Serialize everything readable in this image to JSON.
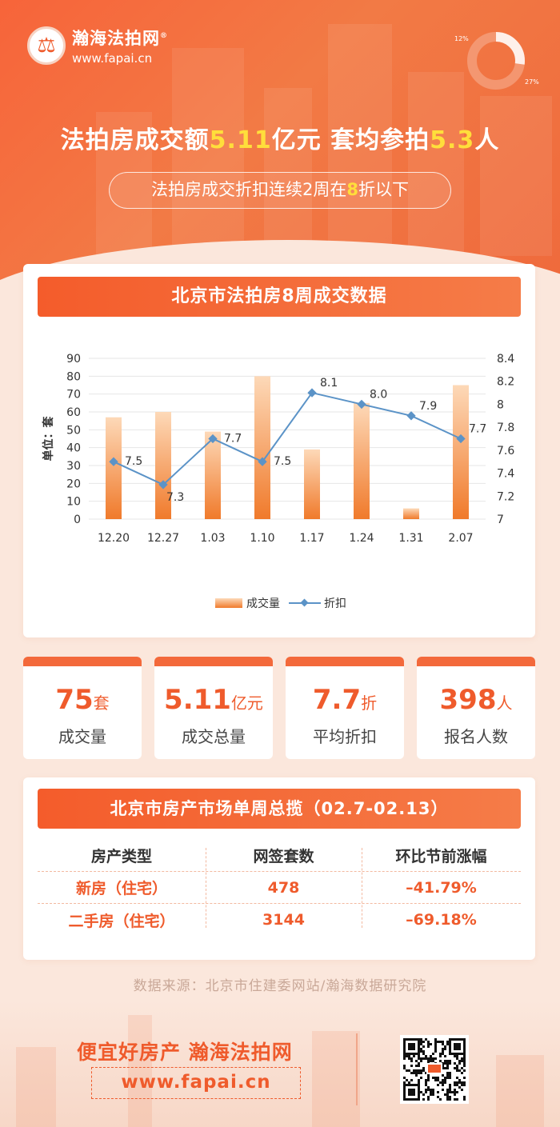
{
  "brand": {
    "name": "瀚海法拍网",
    "reg_mark": "®",
    "url": "www.fapai.cn",
    "logo_glyph": "⚖"
  },
  "hero": {
    "headline_parts": [
      "法拍房成交额",
      "5.11",
      "亿元 套均参拍",
      "5.3",
      "人"
    ],
    "subline_parts": [
      "法拍房成交折扣连续2周在",
      "8",
      "折以下"
    ],
    "donut_labels": [
      "12%",
      "27%"
    ]
  },
  "chart_section": {
    "title": "北京市法拍房8周成交数据"
  },
  "chart_data": {
    "type": "bar",
    "categories": [
      "12.20",
      "12.27",
      "1.03",
      "1.10",
      "1.17",
      "1.24",
      "1.31",
      "2.07"
    ],
    "series": [
      {
        "name": "成交量",
        "type": "bar",
        "axis": "left",
        "values": [
          57,
          60,
          49,
          80,
          39,
          65,
          6,
          75
        ]
      },
      {
        "name": "折扣",
        "type": "line",
        "axis": "right",
        "values": [
          7.5,
          7.3,
          7.7,
          7.5,
          8.1,
          8.0,
          7.9,
          7.7
        ]
      }
    ],
    "ylabel": "单位：套",
    "ylim": [
      0,
      90
    ],
    "y_ticks": [
      0,
      10,
      20,
      30,
      40,
      50,
      60,
      70,
      80,
      90
    ],
    "y2lim": [
      7,
      8.4
    ],
    "y2_ticks": [
      "7",
      "7.2",
      "7.4",
      "7.6",
      "7.8",
      "8",
      "8.2",
      "8.4"
    ],
    "line_labels": [
      "7.5",
      "7.3",
      "7.7",
      "7.5",
      "8.1",
      "8.0",
      "7.9",
      "7.7"
    ],
    "legend_position": "bottom",
    "colors": {
      "bar_top": "#fdd9b8",
      "bar_bottom": "#f07a2b",
      "line": "#5b93c7",
      "grid": "#e6e6e6"
    }
  },
  "stats": [
    {
      "value": "75",
      "unit": "套",
      "label": "成交量"
    },
    {
      "value": "5.11",
      "unit": "亿元",
      "label": "成交总量"
    },
    {
      "value": "7.7",
      "unit": "折",
      "label": "平均折扣"
    },
    {
      "value": "398",
      "unit": "人",
      "label": "报名人数"
    }
  ],
  "market": {
    "title": "北京市房产市场单周总揽（02.7-02.13）",
    "headers": [
      "房产类型",
      "网签套数",
      "环比节前涨幅"
    ],
    "rows": [
      [
        "新房（住宅）",
        "478",
        "–41.79%"
      ],
      [
        "二手房（住宅）",
        "3144",
        "–69.18%"
      ]
    ]
  },
  "source_text": "数据来源：北京市住建委网站/瀚海数据研究院",
  "footer": {
    "slogan": "便宜好房产 瀚海法拍网",
    "url": "www.fapai.cn"
  },
  "colors": {
    "accent": "#ef5b2c",
    "highlight": "#ffde3b",
    "page_bg": "#fbe7dc"
  }
}
